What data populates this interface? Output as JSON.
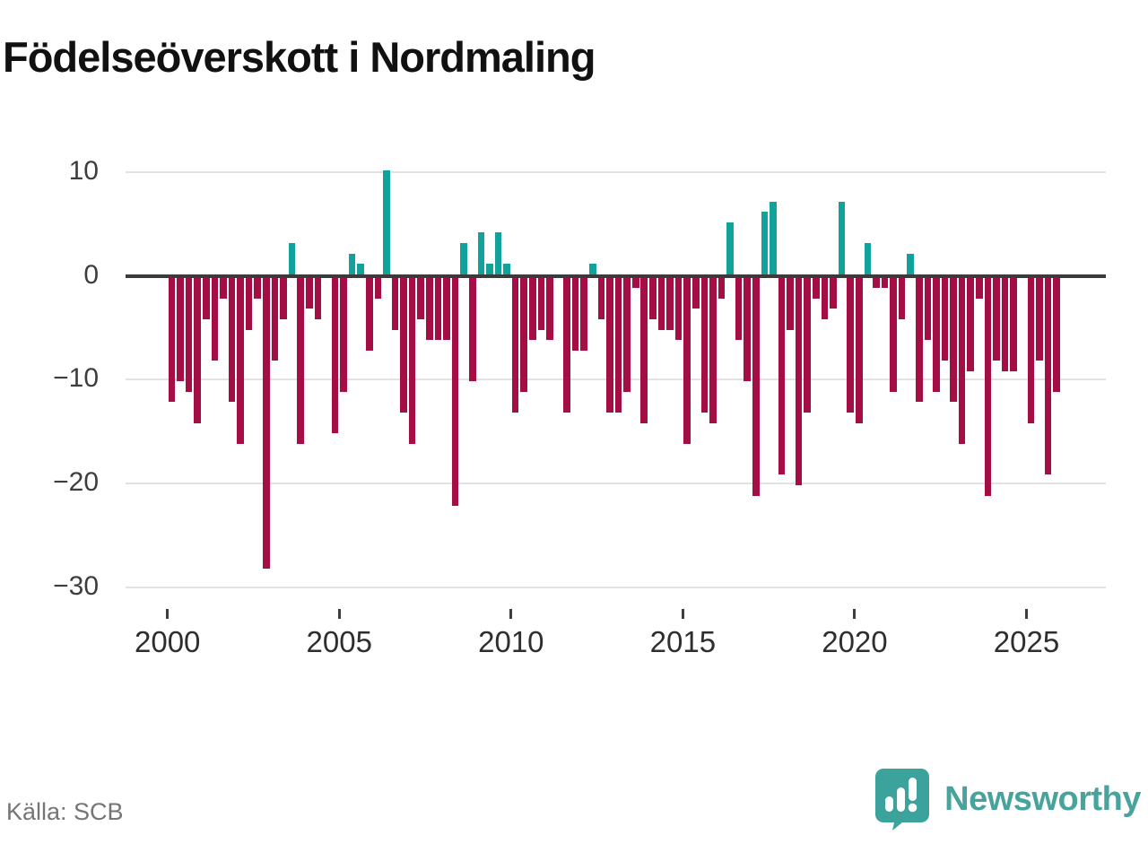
{
  "title": "Födelseöverskott i Nordmaling",
  "source": "Källa: SCB",
  "logo": {
    "text": "Newsworthy"
  },
  "chart_data": {
    "type": "bar",
    "title": "Födelseöverskott i Nordmaling",
    "xlabel": "",
    "ylabel": "",
    "unit": "quarterly",
    "start_year": 2000,
    "periods_per_year": 4,
    "x_tick_labels": [
      "2000",
      "2005",
      "2010",
      "2015",
      "2020",
      "2025"
    ],
    "x_tick_years": [
      2000,
      2005,
      2010,
      2015,
      2020,
      2025
    ],
    "y_tick_labels": [
      "10",
      "0",
      "−10",
      "−20",
      "−30"
    ],
    "y_tick_values": [
      10,
      0,
      -10,
      -20,
      -30
    ],
    "ylim": [
      -30,
      10
    ],
    "grid": true,
    "legend": false,
    "positive_color": "#11a29b",
    "negative_color": "#a50d45",
    "values": [
      -12,
      -10,
      -11,
      -14,
      -4,
      -8,
      -2,
      -12,
      -16,
      -5,
      -2,
      -28,
      -8,
      -4,
      3,
      -16,
      -3,
      -4,
      0,
      -15,
      -11,
      2,
      1,
      -7,
      -2,
      10,
      -5,
      -13,
      -16,
      -4,
      -6,
      -6,
      -6,
      -22,
      3,
      -10,
      4,
      1,
      4,
      1,
      -13,
      -11,
      -6,
      -5,
      -6,
      0,
      -13,
      -7,
      -7,
      1,
      -4,
      -13,
      -13,
      -11,
      -1,
      -14,
      -4,
      -5,
      -5,
      -6,
      -16,
      -3,
      -13,
      -14,
      -2,
      5,
      -6,
      -10,
      -21,
      6,
      7,
      -19,
      -5,
      -20,
      -13,
      -2,
      -4,
      -3,
      7,
      -13,
      -14,
      3,
      -1,
      -1,
      -11,
      -4,
      2,
      -12,
      -6,
      -11,
      -8,
      -12,
      -16,
      -9,
      -2,
      -21,
      -8,
      -9,
      -9,
      0,
      -14,
      -8,
      -19,
      -11
    ]
  }
}
